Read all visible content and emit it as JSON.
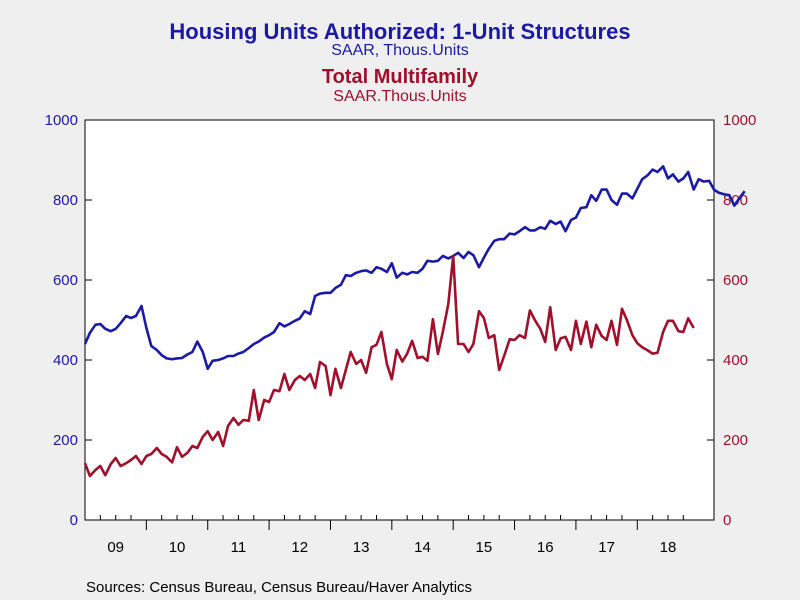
{
  "chart_data": {
    "type": "line",
    "title": "Housing Units Authorized: 1-Unit Structures",
    "subtitle": "SAAR, Thous.Units",
    "title2": "Total Multifamily",
    "subtitle2": "SAAR.Thous.Units",
    "source": "Sources:  Census Bureau, Census Bureau/Haver Analytics",
    "x_labels": [
      "09",
      "10",
      "11",
      "12",
      "13",
      "14",
      "15",
      "16",
      "17",
      "18"
    ],
    "y_ticks": [
      0,
      200,
      400,
      600,
      800,
      1000
    ],
    "ylim": [
      0,
      1000
    ],
    "x_start": 2009.0,
    "x_end": 2019.25,
    "grid": false,
    "series": [
      {
        "name": "Housing Units Authorized: 1-Unit Structures",
        "axis": "left",
        "color": "#1a1aa6",
        "points": [
          [
            2009.0,
            440
          ],
          [
            2009.08,
            468
          ],
          [
            2009.17,
            488
          ],
          [
            2009.25,
            490
          ],
          [
            2009.33,
            478
          ],
          [
            2009.42,
            472
          ],
          [
            2009.5,
            478
          ],
          [
            2009.58,
            492
          ],
          [
            2009.67,
            510
          ],
          [
            2009.75,
            505
          ],
          [
            2009.83,
            510
          ],
          [
            2009.92,
            535
          ],
          [
            2010.0,
            480
          ],
          [
            2010.08,
            435
          ],
          [
            2010.17,
            425
          ],
          [
            2010.25,
            412
          ],
          [
            2010.33,
            404
          ],
          [
            2010.42,
            402
          ],
          [
            2010.5,
            404
          ],
          [
            2010.58,
            405
          ],
          [
            2010.67,
            414
          ],
          [
            2010.75,
            420
          ],
          [
            2010.83,
            446
          ],
          [
            2010.92,
            420
          ],
          [
            2011.0,
            378
          ],
          [
            2011.08,
            398
          ],
          [
            2011.17,
            400
          ],
          [
            2011.25,
            404
          ],
          [
            2011.33,
            410
          ],
          [
            2011.42,
            410
          ],
          [
            2011.5,
            416
          ],
          [
            2011.58,
            420
          ],
          [
            2011.67,
            430
          ],
          [
            2011.75,
            440
          ],
          [
            2011.83,
            446
          ],
          [
            2011.92,
            456
          ],
          [
            2012.0,
            462
          ],
          [
            2012.08,
            470
          ],
          [
            2012.17,
            492
          ],
          [
            2012.25,
            484
          ],
          [
            2012.33,
            490
          ],
          [
            2012.42,
            498
          ],
          [
            2012.5,
            504
          ],
          [
            2012.58,
            522
          ],
          [
            2012.67,
            515
          ],
          [
            2012.75,
            560
          ],
          [
            2012.83,
            566
          ],
          [
            2012.92,
            568
          ],
          [
            2013.0,
            568
          ],
          [
            2013.08,
            580
          ],
          [
            2013.17,
            588
          ],
          [
            2013.25,
            612
          ],
          [
            2013.33,
            610
          ],
          [
            2013.42,
            618
          ],
          [
            2013.5,
            622
          ],
          [
            2013.58,
            624
          ],
          [
            2013.67,
            618
          ],
          [
            2013.75,
            632
          ],
          [
            2013.83,
            628
          ],
          [
            2013.92,
            620
          ],
          [
            2014.0,
            642
          ],
          [
            2014.08,
            606
          ],
          [
            2014.17,
            618
          ],
          [
            2014.25,
            614
          ],
          [
            2014.33,
            620
          ],
          [
            2014.42,
            618
          ],
          [
            2014.5,
            628
          ],
          [
            2014.58,
            648
          ],
          [
            2014.67,
            646
          ],
          [
            2014.75,
            648
          ],
          [
            2014.83,
            660
          ],
          [
            2014.92,
            654
          ],
          [
            2015.0,
            660
          ],
          [
            2015.08,
            668
          ],
          [
            2015.17,
            655
          ],
          [
            2015.25,
            670
          ],
          [
            2015.33,
            662
          ],
          [
            2015.42,
            632
          ],
          [
            2015.5,
            656
          ],
          [
            2015.58,
            678
          ],
          [
            2015.67,
            698
          ],
          [
            2015.75,
            702
          ],
          [
            2015.83,
            702
          ],
          [
            2015.92,
            716
          ],
          [
            2016.0,
            714
          ],
          [
            2016.08,
            722
          ],
          [
            2016.17,
            732
          ],
          [
            2016.25,
            724
          ],
          [
            2016.33,
            724
          ],
          [
            2016.42,
            732
          ],
          [
            2016.5,
            728
          ],
          [
            2016.58,
            748
          ],
          [
            2016.67,
            740
          ],
          [
            2016.75,
            746
          ],
          [
            2016.83,
            722
          ],
          [
            2016.92,
            750
          ],
          [
            2017.0,
            756
          ],
          [
            2017.08,
            780
          ],
          [
            2017.17,
            782
          ],
          [
            2017.25,
            812
          ],
          [
            2017.33,
            798
          ],
          [
            2017.42,
            826
          ],
          [
            2017.5,
            826
          ],
          [
            2017.58,
            800
          ],
          [
            2017.67,
            788
          ],
          [
            2017.75,
            816
          ],
          [
            2017.83,
            816
          ],
          [
            2017.92,
            804
          ],
          [
            2018.0,
            828
          ],
          [
            2018.08,
            852
          ],
          [
            2018.17,
            862
          ],
          [
            2018.25,
            876
          ],
          [
            2018.33,
            870
          ],
          [
            2018.42,
            884
          ],
          [
            2018.5,
            854
          ],
          [
            2018.58,
            864
          ],
          [
            2018.67,
            846
          ],
          [
            2018.75,
            854
          ],
          [
            2018.83,
            870
          ],
          [
            2018.92,
            826
          ],
          [
            2019.0,
            852
          ],
          [
            2019.08,
            846
          ],
          [
            2019.17,
            848
          ],
          [
            2019.25,
            826
          ],
          [
            2019.33,
            818
          ],
          [
            2019.42,
            814
          ],
          [
            2019.5,
            812
          ],
          [
            2019.58,
            786
          ],
          [
            2019.67,
            806
          ],
          [
            2019.75,
            822
          ]
        ]
      },
      {
        "name": "Total Multifamily",
        "axis": "right",
        "color": "#a0102a",
        "points": [
          [
            2009.0,
            142
          ],
          [
            2009.08,
            110
          ],
          [
            2009.17,
            125
          ],
          [
            2009.25,
            135
          ],
          [
            2009.33,
            112
          ],
          [
            2009.42,
            140
          ],
          [
            2009.5,
            155
          ],
          [
            2009.58,
            135
          ],
          [
            2009.67,
            142
          ],
          [
            2009.75,
            150
          ],
          [
            2009.83,
            160
          ],
          [
            2009.92,
            140
          ],
          [
            2010.0,
            160
          ],
          [
            2010.08,
            165
          ],
          [
            2010.17,
            180
          ],
          [
            2010.25,
            165
          ],
          [
            2010.33,
            158
          ],
          [
            2010.42,
            144
          ],
          [
            2010.5,
            182
          ],
          [
            2010.58,
            158
          ],
          [
            2010.67,
            168
          ],
          [
            2010.75,
            185
          ],
          [
            2010.83,
            180
          ],
          [
            2010.92,
            208
          ],
          [
            2011.0,
            222
          ],
          [
            2011.08,
            200
          ],
          [
            2011.17,
            220
          ],
          [
            2011.25,
            185
          ],
          [
            2011.33,
            235
          ],
          [
            2011.42,
            255
          ],
          [
            2011.5,
            238
          ],
          [
            2011.58,
            250
          ],
          [
            2011.67,
            248
          ],
          [
            2011.75,
            325
          ],
          [
            2011.83,
            250
          ],
          [
            2011.92,
            300
          ],
          [
            2012.0,
            295
          ],
          [
            2012.08,
            325
          ],
          [
            2012.17,
            322
          ],
          [
            2012.25,
            365
          ],
          [
            2012.33,
            325
          ],
          [
            2012.42,
            350
          ],
          [
            2012.5,
            360
          ],
          [
            2012.58,
            350
          ],
          [
            2012.67,
            365
          ],
          [
            2012.75,
            330
          ],
          [
            2012.83,
            395
          ],
          [
            2012.92,
            385
          ],
          [
            2013.0,
            312
          ],
          [
            2013.08,
            378
          ],
          [
            2013.17,
            330
          ],
          [
            2013.25,
            375
          ],
          [
            2013.33,
            420
          ],
          [
            2013.42,
            390
          ],
          [
            2013.5,
            400
          ],
          [
            2013.58,
            368
          ],
          [
            2013.67,
            432
          ],
          [
            2013.75,
            438
          ],
          [
            2013.83,
            470
          ],
          [
            2013.92,
            390
          ],
          [
            2014.0,
            352
          ],
          [
            2014.08,
            425
          ],
          [
            2014.17,
            396
          ],
          [
            2014.25,
            416
          ],
          [
            2014.33,
            448
          ],
          [
            2014.42,
            405
          ],
          [
            2014.5,
            408
          ],
          [
            2014.58,
            398
          ],
          [
            2014.67,
            502
          ],
          [
            2014.75,
            415
          ],
          [
            2014.83,
            470
          ],
          [
            2014.92,
            540
          ],
          [
            2015.0,
            660
          ],
          [
            2015.08,
            440
          ],
          [
            2015.17,
            440
          ],
          [
            2015.25,
            420
          ],
          [
            2015.33,
            440
          ],
          [
            2015.42,
            522
          ],
          [
            2015.5,
            505
          ],
          [
            2015.58,
            455
          ],
          [
            2015.67,
            462
          ],
          [
            2015.75,
            375
          ],
          [
            2015.83,
            410
          ],
          [
            2015.92,
            452
          ],
          [
            2016.0,
            450
          ],
          [
            2016.08,
            462
          ],
          [
            2016.17,
            455
          ],
          [
            2016.25,
            524
          ],
          [
            2016.33,
            500
          ],
          [
            2016.42,
            478
          ],
          [
            2016.5,
            445
          ],
          [
            2016.58,
            532
          ],
          [
            2016.67,
            425
          ],
          [
            2016.75,
            454
          ],
          [
            2016.83,
            458
          ],
          [
            2016.92,
            425
          ],
          [
            2017.0,
            498
          ],
          [
            2017.08,
            440
          ],
          [
            2017.17,
            496
          ],
          [
            2017.25,
            432
          ],
          [
            2017.33,
            488
          ],
          [
            2017.42,
            460
          ],
          [
            2017.5,
            450
          ],
          [
            2017.58,
            498
          ],
          [
            2017.67,
            438
          ],
          [
            2017.75,
            528
          ],
          [
            2017.83,
            500
          ],
          [
            2017.92,
            462
          ],
          [
            2018.0,
            442
          ],
          [
            2018.08,
            432
          ],
          [
            2018.17,
            424
          ],
          [
            2018.25,
            416
          ],
          [
            2018.33,
            418
          ],
          [
            2018.42,
            470
          ],
          [
            2018.5,
            498
          ],
          [
            2018.58,
            498
          ],
          [
            2018.67,
            472
          ],
          [
            2018.75,
            470
          ],
          [
            2018.83,
            504
          ],
          [
            2018.92,
            480
          ]
        ]
      }
    ]
  }
}
